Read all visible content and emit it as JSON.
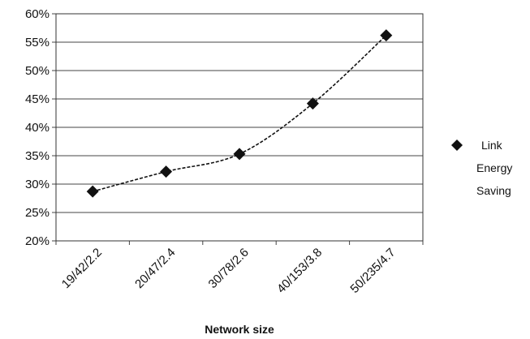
{
  "chart_data": {
    "type": "line",
    "categories": [
      "19/42/2.2",
      "20/47/2.4",
      "30/78/2.6",
      "40/153/3.8",
      "50/235/4.7"
    ],
    "series": [
      {
        "name": "Link Energy Saving",
        "values": [
          28.7,
          32.2,
          35.3,
          44.2,
          56.2
        ],
        "color": "#111111",
        "line_style": "dashed",
        "marker": "diamond"
      }
    ],
    "title": "",
    "xlabel": "Network size",
    "ylabel": "",
    "ylim": [
      20,
      60
    ],
    "y_ticks": [
      "20%",
      "25%",
      "30%",
      "35%",
      "40%",
      "45%",
      "50%",
      "55%",
      "60%"
    ],
    "y_tick_values": [
      20,
      25,
      30,
      35,
      40,
      45,
      50,
      55,
      60
    ],
    "grid": true,
    "legend": {
      "position": "right",
      "lines": [
        "Link",
        "Energy",
        "Saving"
      ]
    }
  }
}
